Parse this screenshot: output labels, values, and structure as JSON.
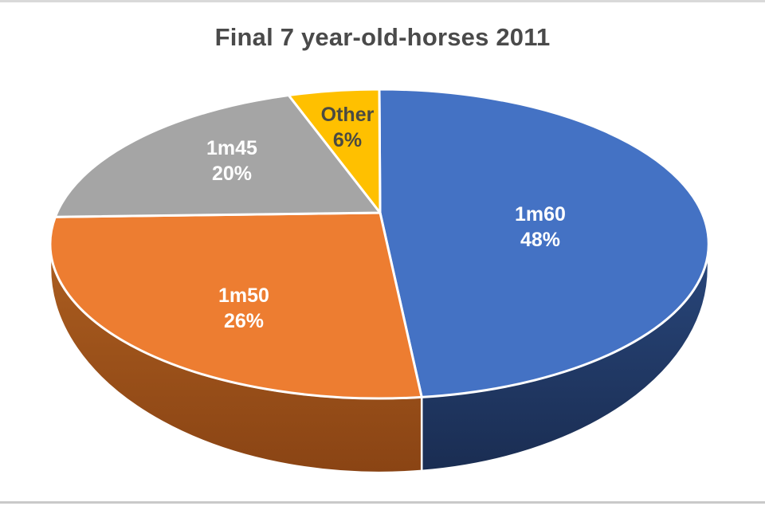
{
  "chart_data": {
    "type": "pie",
    "style": "3d",
    "title": "Final 7 year-old-horses 2011",
    "legend": "none",
    "labels_on_slices": true,
    "direction": "clockwise",
    "start_angle_deg": 0,
    "categories": [
      "1m60",
      "1m50",
      "1m45",
      "Other"
    ],
    "values": [
      48,
      26,
      20,
      6
    ],
    "slices": [
      {
        "label": "1m60",
        "value": 48,
        "pct_text": "48%",
        "color": "#4472C4",
        "side_color_top": "#29477C",
        "side_color_bottom": "#1A2D52",
        "text_color": "#FFFFFF",
        "side_visible": true
      },
      {
        "label": "1m50",
        "value": 26,
        "pct_text": "26%",
        "color": "#ED7D31",
        "side_color_top": "#AC5E20",
        "side_color_bottom": "#8A4414",
        "text_color": "#FFFFFF",
        "side_visible": true
      },
      {
        "label": "1m45",
        "value": 20,
        "pct_text": "20%",
        "color": "#A5A5A5",
        "side_color_top": "#6E6E6E",
        "side_color_bottom": "#6E6E6E",
        "text_color": "#FFFFFF",
        "side_visible": false
      },
      {
        "label": "Other",
        "value": 6,
        "pct_text": "6%",
        "color": "#FFC000",
        "side_color_top": "#B08400",
        "side_color_bottom": "#B08400",
        "text_color": "#4A4A42",
        "side_visible": false
      }
    ],
    "title_color": "#4A4A4A",
    "background_color": "#FFFFFF",
    "frame_line_color": "#D9D9D9"
  }
}
